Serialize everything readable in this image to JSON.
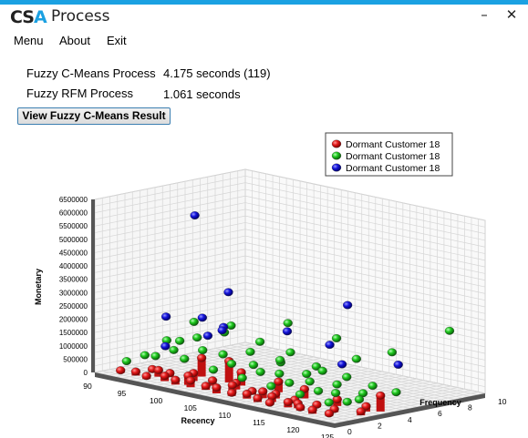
{
  "window": {
    "logo_prefix": "CS",
    "logo_accent": "A",
    "title": "Process",
    "minimize_glyph": "–",
    "close_glyph": "✕"
  },
  "menu": {
    "items": [
      "Menu",
      "About",
      "Exit"
    ]
  },
  "results": {
    "fcm_label": "Fuzzy C-Means Process",
    "fcm_value": "4.175 seconds (119)",
    "rfm_label": "Fuzzy RFM Process",
    "rfm_value": "1.061 seconds",
    "view_button": "View Fuzzy C-Means Result"
  },
  "chart_data": {
    "type": "scatter",
    "x_axis": {
      "label": "Recency",
      "range": [
        90,
        125
      ],
      "ticks": [
        "90",
        "95",
        "100",
        "105",
        "110",
        "115",
        "120",
        "125"
      ]
    },
    "y_axis": {
      "label": "Frequency",
      "range": [
        0,
        10
      ],
      "ticks": [
        "0",
        "2",
        "4",
        "6",
        "8",
        "10"
      ]
    },
    "z_axis": {
      "label": "Monetary",
      "range": [
        0,
        6500000
      ],
      "ticks": [
        "0",
        "500000",
        "1000000",
        "1500000",
        "2000000",
        "2500000",
        "3000000",
        "3500000",
        "4000000",
        "4500000",
        "5000000",
        "5500000",
        "6000000",
        "6500000"
      ]
    },
    "grid": true,
    "legend_position": "top-right",
    "series": [
      {
        "name": "Dormant Customer 18",
        "color": "#e41a1a",
        "points": [
          [
            92,
            0.8,
            100000
          ],
          [
            94,
            0.9,
            150000
          ],
          [
            96,
            0.7,
            120000
          ],
          [
            98,
            1.0,
            200000
          ],
          [
            100,
            0.8,
            180000
          ],
          [
            102,
            0.9,
            250000
          ],
          [
            104,
            1.0,
            150000
          ],
          [
            106,
            0.8,
            220000
          ],
          [
            108,
            0.9,
            120000
          ],
          [
            110,
            1.0,
            180000
          ],
          [
            112,
            0.8,
            150000
          ],
          [
            114,
            0.7,
            100000
          ],
          [
            116,
            1.0,
            200000
          ],
          [
            118,
            0.9,
            120000
          ],
          [
            120,
            0.8,
            150000
          ],
          [
            122,
            1.0,
            100000
          ],
          [
            94,
            2.0,
            120000
          ],
          [
            97,
            1.8,
            160000
          ],
          [
            100,
            2.0,
            300000
          ],
          [
            103,
            1.9,
            200000
          ],
          [
            106,
            2.1,
            250000
          ],
          [
            109,
            1.8,
            140000
          ],
          [
            112,
            2.0,
            180000
          ],
          [
            115,
            1.9,
            130000
          ],
          [
            118,
            2.0,
            100000
          ],
          [
            121,
            1.8,
            120000
          ],
          [
            124,
            2.2,
            150000
          ],
          [
            99,
            3.0,
            700000
          ],
          [
            103,
            3.0,
            800000
          ],
          [
            105,
            2.9,
            500000
          ],
          [
            110,
            3.1,
            400000
          ],
          [
            114,
            3.0,
            350000
          ],
          [
            119,
            2.9,
            250000
          ],
          [
            123,
            3.0,
            200000
          ],
          [
            101,
            1.2,
            350000
          ],
          [
            107,
            1.4,
            300000
          ],
          [
            113,
            1.3,
            220000
          ],
          [
            117,
            1.2,
            180000
          ],
          [
            124,
            3.5,
            600000
          ],
          [
            96,
            1.5,
            250000
          ],
          [
            111,
            1.6,
            260000
          ]
        ]
      },
      {
        "name": "Dormant Customer 18",
        "color": "#1ec81e",
        "points": [
          [
            92,
            1.2,
            400000
          ],
          [
            94,
            1.5,
            700000
          ],
          [
            96,
            1.3,
            800000
          ],
          [
            98,
            1.6,
            1100000
          ],
          [
            100,
            1.4,
            900000
          ],
          [
            102,
            1.7,
            1300000
          ],
          [
            104,
            1.5,
            700000
          ],
          [
            106,
            1.8,
            1000000
          ],
          [
            108,
            1.6,
            600000
          ],
          [
            110,
            1.9,
            900000
          ],
          [
            112,
            1.7,
            500000
          ],
          [
            114,
            2.0,
            700000
          ],
          [
            116,
            1.8,
            400000
          ],
          [
            118,
            2.1,
            600000
          ],
          [
            120,
            1.9,
            300000
          ],
          [
            122,
            2.2,
            400000
          ],
          [
            95,
            2.5,
            1200000
          ],
          [
            99,
            2.7,
            1500000
          ],
          [
            103,
            2.6,
            1100000
          ],
          [
            107,
            2.8,
            900000
          ],
          [
            111,
            2.7,
            800000
          ],
          [
            115,
            2.9,
            700000
          ],
          [
            119,
            2.8,
            500000
          ],
          [
            122,
            3.0,
            400000
          ],
          [
            97,
            3.4,
            1900000
          ],
          [
            101,
            3.6,
            1700000
          ],
          [
            105,
            3.5,
            1200000
          ],
          [
            109,
            3.7,
            1000000
          ],
          [
            113,
            3.6,
            800000
          ],
          [
            117,
            3.8,
            600000
          ],
          [
            121,
            3.7,
            500000
          ],
          [
            100,
            4.5,
            1800000
          ],
          [
            104,
            4.6,
            1400000
          ],
          [
            108,
            4.8,
            1200000
          ],
          [
            112,
            4.7,
            900000
          ],
          [
            116,
            4.9,
            700000
          ],
          [
            120,
            4.8,
            600000
          ],
          [
            123,
            5.0,
            500000
          ],
          [
            105,
            6.0,
            2000000
          ],
          [
            111,
            6.5,
            1700000
          ],
          [
            115,
            6.0,
            1200000
          ],
          [
            118,
            7.0,
            1500000
          ],
          [
            122,
            9.0,
            2300000
          ],
          [
            98,
            2.0,
            1400000
          ],
          [
            110,
            3.2,
            1200000
          ],
          [
            114,
            4.2,
            900000
          ]
        ]
      },
      {
        "name": "Dormant Customer 18",
        "color": "#1414dc",
        "points": [
          [
            98,
            3.0,
            6000000
          ],
          [
            104,
            2.5,
            3500000
          ],
          [
            117,
            4.5,
            3500000
          ],
          [
            96,
            2.0,
            2200000
          ],
          [
            98,
            3.5,
            2100000
          ],
          [
            101,
            2.5,
            1700000
          ],
          [
            102,
            3.0,
            1900000
          ],
          [
            100,
            4.0,
            1800000
          ],
          [
            106,
            5.5,
            1800000
          ],
          [
            110,
            6.5,
            1400000
          ],
          [
            114,
            5.5,
            1000000
          ],
          [
            120,
            6.5,
            1200000
          ],
          [
            97,
            1.5,
            1200000
          ]
        ]
      }
    ]
  }
}
